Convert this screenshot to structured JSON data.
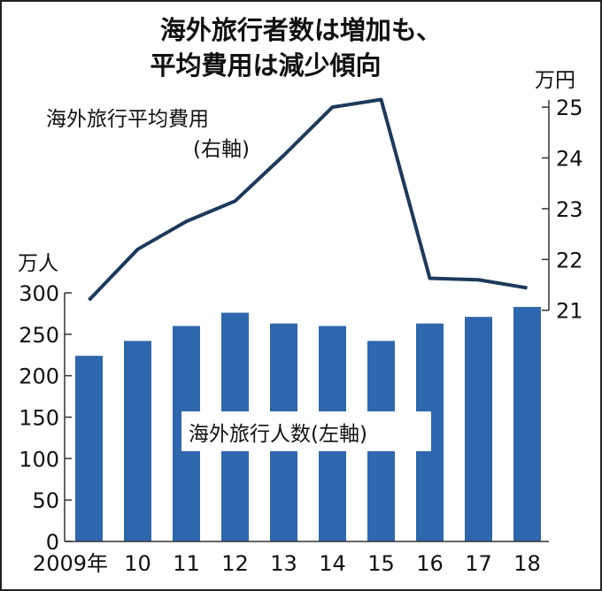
{
  "chart_data": {
    "type": "bar+line",
    "title_lines": [
      "海外旅行者数は増加も、",
      "平均費用は減少傾向"
    ],
    "categories": [
      "2009年",
      "10",
      "11",
      "12",
      "13",
      "14",
      "15",
      "16",
      "17",
      "18"
    ],
    "series": [
      {
        "name": "海外旅行人数(左軸)",
        "type": "bar",
        "axis": "left",
        "values": [
          224,
          242,
          260,
          276,
          263,
          260,
          242,
          263,
          271,
          283
        ]
      },
      {
        "name_lines": [
          "海外旅行平均費用",
          "(右軸)"
        ],
        "type": "line",
        "axis": "right",
        "values": [
          21.2,
          22.2,
          22.75,
          23.15,
          24.05,
          25.0,
          25.15,
          21.63,
          21.6,
          21.44
        ]
      }
    ],
    "left_axis": {
      "unit": "万人",
      "ylim": [
        0,
        300
      ],
      "ticks": [
        0,
        50,
        100,
        150,
        200,
        250,
        300
      ]
    },
    "right_axis": {
      "unit": "万円",
      "ylim": [
        21,
        25
      ],
      "ticks": [
        21,
        22,
        23,
        24,
        25
      ]
    },
    "colors": {
      "bar": "#2e67ad",
      "line": "#1d3a5c",
      "border": "#222222"
    },
    "grid": false
  }
}
